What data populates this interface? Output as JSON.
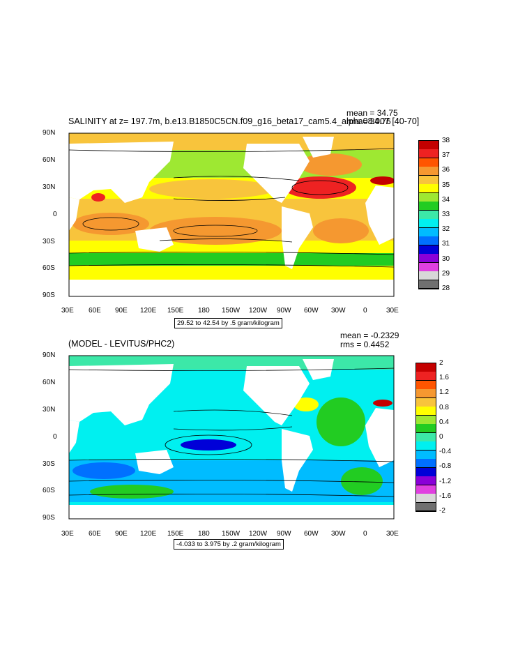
{
  "top_panel": {
    "title": "SALINITY at z= 197.7m, b.e13.B1850C5CN.f09_g16_beta17_cam5.4_alpha08.007 [40-70]",
    "mean_text": "mean = 34.75",
    "rms_text": "rms = 34.76",
    "range_text": "29.52 to 42.54 by .5 gram/kilogram",
    "colorbar_labels": [
      "38",
      "37",
      "36",
      "35",
      "34",
      "33",
      "32",
      "31",
      "30",
      "29",
      "28"
    ],
    "colorbar_colors": [
      "#c40000",
      "#ee2222",
      "#ff5500",
      "#f59830",
      "#f8c43c",
      "#ffff00",
      "#9ee832",
      "#22cc22",
      "#3ce8a8",
      "#00f0f0",
      "#00bcff",
      "#0070ff",
      "#0000d8",
      "#8a00d8",
      "#e040e0",
      "#d8d8d8",
      "#707070"
    ]
  },
  "bottom_panel": {
    "title": "(MODEL - LEVITUS/PHC2)",
    "mean_text": "mean = -0.2329",
    "rms_text": "rms = 0.4452",
    "range_text": "-4.033 to 3.975 by .2 gram/kilogram",
    "colorbar_labels": [
      "2",
      "1.6",
      "1.2",
      "0.8",
      "0.4",
      "0",
      "-0.4",
      "-0.8",
      "-1.2",
      "-1.6",
      "-2"
    ],
    "colorbar_colors": [
      "#c40000",
      "#ee2222",
      "#ff5500",
      "#f59830",
      "#f8c43c",
      "#ffff00",
      "#9ee832",
      "#22cc22",
      "#3ce8a8",
      "#00f0f0",
      "#00bcff",
      "#0070ff",
      "#0000d8",
      "#8a00d8",
      "#e040e0",
      "#d8d8d8",
      "#707070"
    ]
  },
  "lat_labels": [
    "90N",
    "60N",
    "30N",
    "0",
    "30S",
    "60S",
    "90S"
  ],
  "lon_labels": [
    "30E",
    "60E",
    "90E",
    "120E",
    "150E",
    "180",
    "150W",
    "120W",
    "90W",
    "60W",
    "30W",
    "0",
    "30E"
  ],
  "colors": {
    "land": "#ffffff",
    "contour": "#000000"
  }
}
